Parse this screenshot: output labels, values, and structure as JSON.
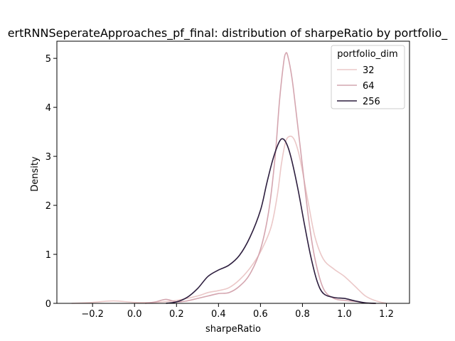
{
  "chart_data": {
    "type": "line",
    "title": "ertRNNSeperateApproaches_pf_final: distribution of sharpeRatio by portfolio_",
    "xlabel": "sharpeRatio",
    "ylabel": "Density",
    "xlim": [
      -0.37,
      1.31
    ],
    "ylim": [
      0,
      5.35
    ],
    "xticks": [
      "−0.2",
      "0.0",
      "0.2",
      "0.4",
      "0.6",
      "0.8",
      "1.0",
      "1.2"
    ],
    "xtick_values": [
      -0.2,
      0.0,
      0.2,
      0.4,
      0.6,
      0.8,
      1.0,
      1.2
    ],
    "yticks": [
      "0",
      "1",
      "2",
      "3",
      "4",
      "5"
    ],
    "ytick_values": [
      0,
      1,
      2,
      3,
      4,
      5
    ],
    "grid": false,
    "legend": {
      "title": "portfolio_dim",
      "placement": "top-right"
    },
    "series": [
      {
        "name": "32",
        "color": "#ebc8c8",
        "points": [
          [
            -0.3,
            0.0
          ],
          [
            -0.2,
            0.02
          ],
          [
            -0.1,
            0.05
          ],
          [
            0.0,
            0.02
          ],
          [
            0.1,
            0.02
          ],
          [
            0.2,
            0.06
          ],
          [
            0.3,
            0.15
          ],
          [
            0.35,
            0.22
          ],
          [
            0.4,
            0.26
          ],
          [
            0.45,
            0.32
          ],
          [
            0.5,
            0.48
          ],
          [
            0.55,
            0.72
          ],
          [
            0.6,
            1.05
          ],
          [
            0.65,
            1.55
          ],
          [
            0.68,
            2.2
          ],
          [
            0.7,
            2.85
          ],
          [
            0.72,
            3.3
          ],
          [
            0.74,
            3.41
          ],
          [
            0.76,
            3.35
          ],
          [
            0.78,
            3.1
          ],
          [
            0.8,
            2.7
          ],
          [
            0.83,
            2.0
          ],
          [
            0.86,
            1.35
          ],
          [
            0.9,
            0.9
          ],
          [
            0.95,
            0.7
          ],
          [
            1.0,
            0.55
          ],
          [
            1.05,
            0.35
          ],
          [
            1.1,
            0.15
          ],
          [
            1.15,
            0.05
          ],
          [
            1.2,
            0.0
          ]
        ]
      },
      {
        "name": "64",
        "color": "#d4a5af",
        "points": [
          [
            0.05,
            0.0
          ],
          [
            0.1,
            0.03
          ],
          [
            0.15,
            0.08
          ],
          [
            0.2,
            0.03
          ],
          [
            0.25,
            0.05
          ],
          [
            0.3,
            0.1
          ],
          [
            0.35,
            0.15
          ],
          [
            0.4,
            0.2
          ],
          [
            0.45,
            0.22
          ],
          [
            0.5,
            0.35
          ],
          [
            0.55,
            0.6
          ],
          [
            0.6,
            1.1
          ],
          [
            0.64,
            1.9
          ],
          [
            0.67,
            3.0
          ],
          [
            0.69,
            4.1
          ],
          [
            0.71,
            4.9
          ],
          [
            0.72,
            5.1
          ],
          [
            0.73,
            5.05
          ],
          [
            0.75,
            4.6
          ],
          [
            0.77,
            3.9
          ],
          [
            0.8,
            2.8
          ],
          [
            0.83,
            1.7
          ],
          [
            0.86,
            0.9
          ],
          [
            0.9,
            0.3
          ],
          [
            0.95,
            0.1
          ],
          [
            1.0,
            0.06
          ],
          [
            1.05,
            0.04
          ],
          [
            1.1,
            0.01
          ],
          [
            1.15,
            0.0
          ]
        ]
      },
      {
        "name": "256",
        "color": "#2d1e3e",
        "points": [
          [
            0.15,
            0.0
          ],
          [
            0.2,
            0.03
          ],
          [
            0.25,
            0.12
          ],
          [
            0.3,
            0.3
          ],
          [
            0.35,
            0.55
          ],
          [
            0.4,
            0.68
          ],
          [
            0.45,
            0.78
          ],
          [
            0.5,
            0.98
          ],
          [
            0.55,
            1.35
          ],
          [
            0.6,
            1.9
          ],
          [
            0.63,
            2.45
          ],
          [
            0.66,
            2.95
          ],
          [
            0.69,
            3.3
          ],
          [
            0.71,
            3.35
          ],
          [
            0.73,
            3.2
          ],
          [
            0.75,
            2.9
          ],
          [
            0.78,
            2.3
          ],
          [
            0.81,
            1.6
          ],
          [
            0.84,
            0.95
          ],
          [
            0.87,
            0.45
          ],
          [
            0.9,
            0.2
          ],
          [
            0.95,
            0.12
          ],
          [
            1.0,
            0.1
          ],
          [
            1.05,
            0.05
          ],
          [
            1.1,
            0.01
          ],
          [
            1.15,
            0.0
          ]
        ]
      }
    ]
  }
}
